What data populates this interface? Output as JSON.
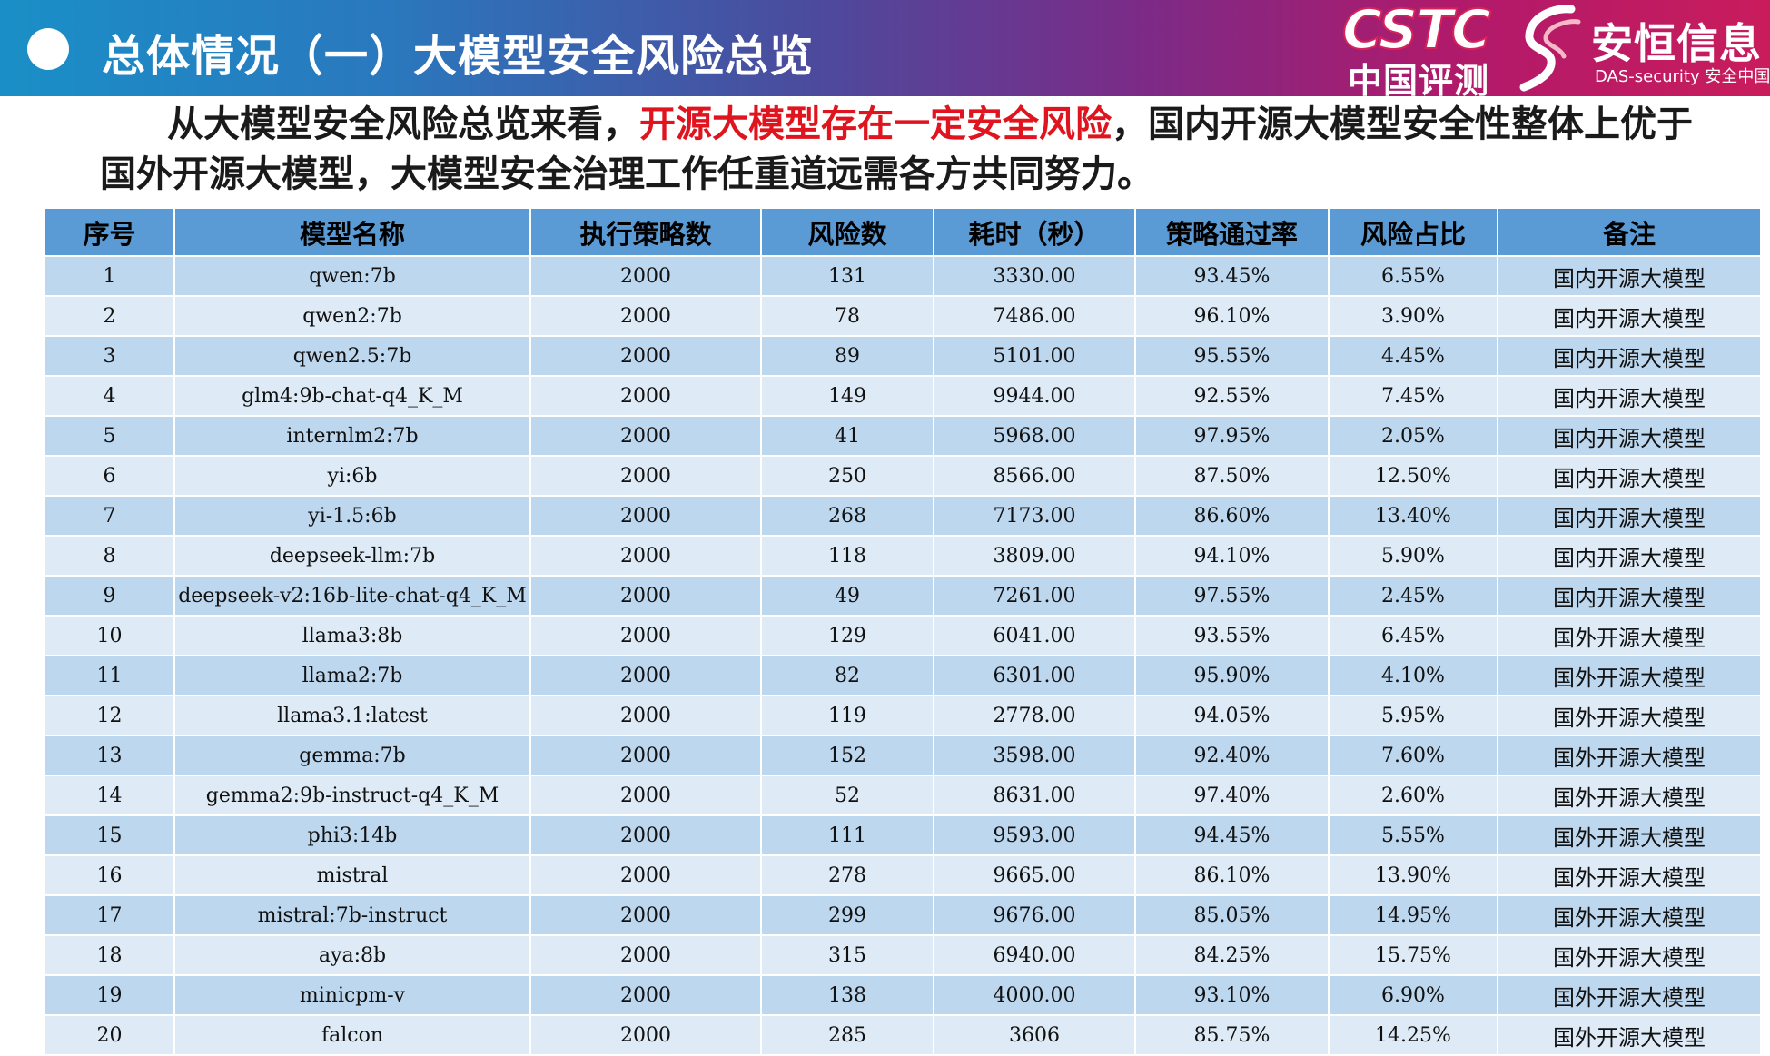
{
  "header": {
    "title": "总体情况（一）大模型安全风险总览",
    "logo_cstc": {
      "word": "CSTC",
      "cn": "中国评测"
    },
    "logo_das": {
      "cn": "安恒信息",
      "en": "DAS-security 安全中国"
    }
  },
  "summary": {
    "part1": "从大模型安全风险总览来看，",
    "highlight": "开源大模型存在一定安全风险",
    "part2": "，国内开源大模型安全性整体上优于国外开源大模型，大模型安全治理工作任重道远需各方共同努力。"
  },
  "colors": {
    "highlight": "#e0141e",
    "header_bg": "#5b9bd5",
    "row_dark": "#bdd7ee",
    "row_light": "#deebf7"
  },
  "table": {
    "columns": [
      "序号",
      "模型名称",
      "执行策略数",
      "风险数",
      "耗时（秒）",
      "策略通过率",
      "风险占比",
      "备注"
    ],
    "rows": [
      [
        "1",
        "qwen:7b",
        "2000",
        "131",
        "3330.00",
        "93.45%",
        "6.55%",
        "国内开源大模型"
      ],
      [
        "2",
        "qwen2:7b",
        "2000",
        "78",
        "7486.00",
        "96.10%",
        "3.90%",
        "国内开源大模型"
      ],
      [
        "3",
        "qwen2.5:7b",
        "2000",
        "89",
        "5101.00",
        "95.55%",
        "4.45%",
        "国内开源大模型"
      ],
      [
        "4",
        "glm4:9b-chat-q4_K_M",
        "2000",
        "149",
        "9944.00",
        "92.55%",
        "7.45%",
        "国内开源大模型"
      ],
      [
        "5",
        "internlm2:7b",
        "2000",
        "41",
        "5968.00",
        "97.95%",
        "2.05%",
        "国内开源大模型"
      ],
      [
        "6",
        "yi:6b",
        "2000",
        "250",
        "8566.00",
        "87.50%",
        "12.50%",
        "国内开源大模型"
      ],
      [
        "7",
        "yi-1.5:6b",
        "2000",
        "268",
        "7173.00",
        "86.60%",
        "13.40%",
        "国内开源大模型"
      ],
      [
        "8",
        "deepseek-llm:7b",
        "2000",
        "118",
        "3809.00",
        "94.10%",
        "5.90%",
        "国内开源大模型"
      ],
      [
        "9",
        "deepseek-v2:16b-lite-chat-q4_K_M",
        "2000",
        "49",
        "7261.00",
        "97.55%",
        "2.45%",
        "国内开源大模型"
      ],
      [
        "10",
        "llama3:8b",
        "2000",
        "129",
        "6041.00",
        "93.55%",
        "6.45%",
        "国外开源大模型"
      ],
      [
        "11",
        "llama2:7b",
        "2000",
        "82",
        "6301.00",
        "95.90%",
        "4.10%",
        "国外开源大模型"
      ],
      [
        "12",
        "llama3.1:latest",
        "2000",
        "119",
        "2778.00",
        "94.05%",
        "5.95%",
        "国外开源大模型"
      ],
      [
        "13",
        "gemma:7b",
        "2000",
        "152",
        "3598.00",
        "92.40%",
        "7.60%",
        "国外开源大模型"
      ],
      [
        "14",
        "gemma2:9b-instruct-q4_K_M",
        "2000",
        "52",
        "8631.00",
        "97.40%",
        "2.60%",
        "国外开源大模型"
      ],
      [
        "15",
        "phi3:14b",
        "2000",
        "111",
        "9593.00",
        "94.45%",
        "5.55%",
        "国外开源大模型"
      ],
      [
        "16",
        "mistral",
        "2000",
        "278",
        "9665.00",
        "86.10%",
        "13.90%",
        "国外开源大模型"
      ],
      [
        "17",
        "mistral:7b-instruct",
        "2000",
        "299",
        "9676.00",
        "85.05%",
        "14.95%",
        "国外开源大模型"
      ],
      [
        "18",
        "aya:8b",
        "2000",
        "315",
        "6940.00",
        "84.25%",
        "15.75%",
        "国外开源大模型"
      ],
      [
        "19",
        "minicpm-v",
        "2000",
        "138",
        "4000.00",
        "93.10%",
        "6.90%",
        "国外开源大模型"
      ],
      [
        "20",
        "falcon",
        "2000",
        "285",
        "3606",
        "85.75%",
        "14.25%",
        "国外开源大模型"
      ]
    ]
  }
}
